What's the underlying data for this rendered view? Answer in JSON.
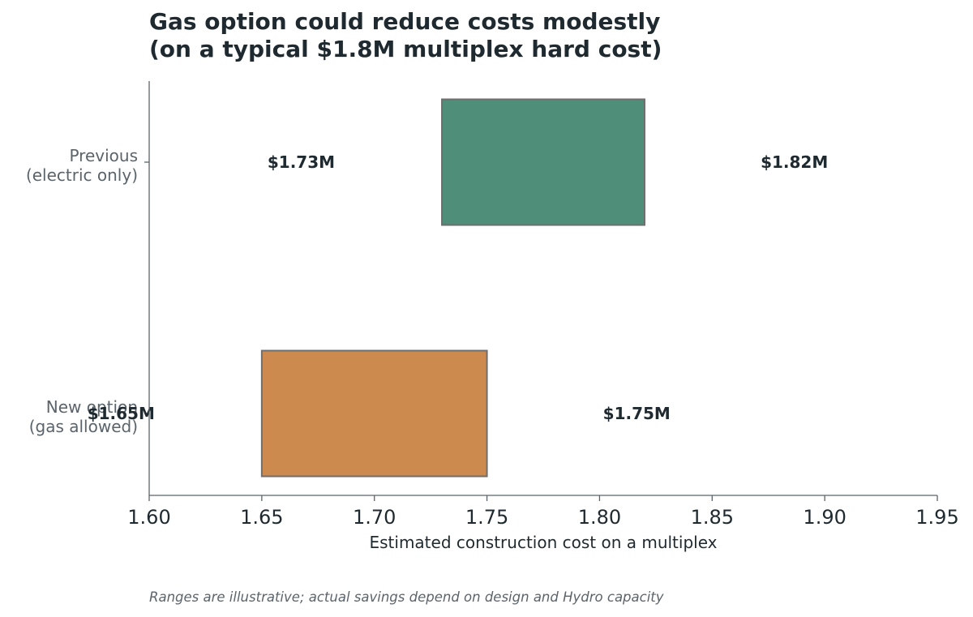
{
  "chart_data": {
    "type": "range-bar",
    "title_lines": [
      "Gas option could reduce costs modestly",
      "(on a typical $1.8M multiplex hard cost)"
    ],
    "xlabel": "Estimated construction cost on a multiplex",
    "xlim": [
      1.6,
      1.95
    ],
    "xticks": [
      1.6,
      1.65,
      1.7,
      1.75,
      1.8,
      1.85,
      1.9,
      1.95
    ],
    "tick_labels": [
      "1.60",
      "1.65",
      "1.70",
      "1.75",
      "1.80",
      "1.85",
      "1.90",
      "1.95"
    ],
    "bars": [
      {
        "label_lines": [
          "Previous",
          "(electric only)"
        ],
        "low": 1.73,
        "high": 1.82,
        "low_label": "$1.73M",
        "high_label": "$1.82M",
        "color": "#4f8f79"
      },
      {
        "label_lines": [
          "New option",
          "(gas allowed)"
        ],
        "low": 1.65,
        "high": 1.75,
        "low_label": "$1.65M",
        "high_label": "$1.75M",
        "color": "#cc8a4f"
      }
    ],
    "grid": false,
    "note": "Ranges are illustrative; actual savings depend on design and Hydro capacity"
  },
  "colors": {
    "text": "#1f2a30",
    "axis": "#5b646b",
    "bar_edge": "#6e6e6e"
  }
}
